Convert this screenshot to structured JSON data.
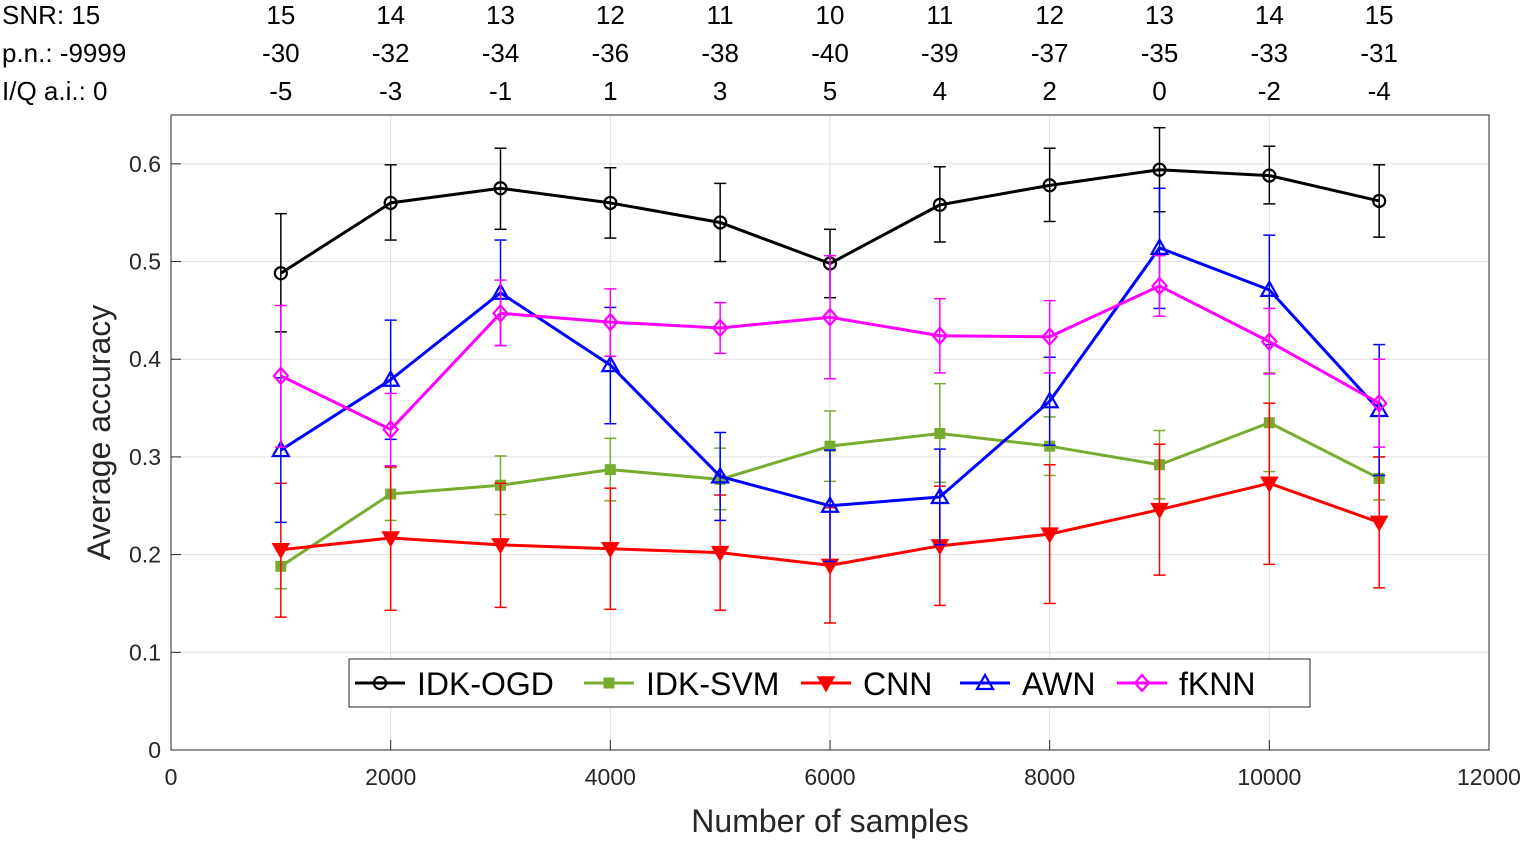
{
  "chart_data": {
    "type": "line",
    "title": "",
    "xlabel": "Number of samples",
    "ylabel": "Average accuracy",
    "xlim": [
      0,
      12000
    ],
    "ylim": [
      0,
      0.65
    ],
    "xticks": [
      0,
      2000,
      4000,
      6000,
      8000,
      10000,
      12000
    ],
    "xtick_labels": [
      "0",
      "2000",
      "4000",
      "6000",
      "8000",
      "10000",
      "12000"
    ],
    "yticks": [
      0,
      0.1,
      0.2,
      0.3,
      0.4,
      0.5,
      0.6
    ],
    "ytick_labels": [
      "0",
      "0.1",
      "0.2",
      "0.3",
      "0.4",
      "0.5",
      "0.6"
    ],
    "grid": true,
    "legend_position": "bottom-center",
    "x": [
      1000,
      2000,
      3000,
      4000,
      5000,
      6000,
      7000,
      8000,
      9000,
      10000,
      11000
    ],
    "top_annotations": [
      {
        "label": "SNR: 15",
        "values": [
          "15",
          "14",
          "13",
          "12",
          "11",
          "10",
          "11",
          "12",
          "13",
          "14",
          "15"
        ]
      },
      {
        "label": "p.n.: -9999",
        "values": [
          "-30",
          "-32",
          "-34",
          "-36",
          "-38",
          "-40",
          "-39",
          "-37",
          "-35",
          "-33",
          "-31"
        ]
      },
      {
        "label": "I/Q a.i.: 0",
        "values": [
          "-5",
          "-3",
          "-1",
          "1",
          "3",
          "5",
          "4",
          "2",
          "0",
          "-2",
          "-4"
        ]
      }
    ],
    "series": [
      {
        "name": "IDK-OGD",
        "color": "#000000",
        "marker": "circle",
        "values": [
          0.488,
          0.56,
          0.575,
          0.56,
          0.54,
          0.498,
          0.558,
          0.578,
          0.594,
          0.588,
          0.562
        ],
        "err_low": [
          0.428,
          0.522,
          0.533,
          0.524,
          0.5,
          0.463,
          0.52,
          0.541,
          0.551,
          0.559,
          0.525
        ],
        "err_high": [
          0.549,
          0.599,
          0.616,
          0.596,
          0.58,
          0.533,
          0.597,
          0.616,
          0.637,
          0.618,
          0.599
        ]
      },
      {
        "name": "IDK-SVM",
        "color": "#77ac30",
        "marker": "square",
        "values": [
          0.188,
          0.262,
          0.271,
          0.287,
          0.277,
          0.311,
          0.324,
          0.311,
          0.292,
          0.335,
          0.278
        ],
        "err_low": [
          0.165,
          0.235,
          0.241,
          0.255,
          0.246,
          0.275,
          0.274,
          0.281,
          0.257,
          0.285,
          0.256
        ],
        "err_high": [
          0.211,
          0.289,
          0.301,
          0.319,
          0.309,
          0.347,
          0.375,
          0.341,
          0.327,
          0.386,
          0.3
        ]
      },
      {
        "name": "CNN",
        "color": "#ff0000",
        "marker": "triangle-down",
        "values": [
          0.205,
          0.217,
          0.21,
          0.206,
          0.202,
          0.189,
          0.209,
          0.221,
          0.246,
          0.273,
          0.233
        ],
        "err_low": [
          0.136,
          0.143,
          0.146,
          0.144,
          0.143,
          0.13,
          0.148,
          0.15,
          0.179,
          0.19,
          0.166
        ],
        "err_high": [
          0.273,
          0.29,
          0.273,
          0.268,
          0.261,
          0.248,
          0.27,
          0.292,
          0.313,
          0.355,
          0.3
        ]
      },
      {
        "name": "AWN",
        "color": "#0000ff",
        "marker": "triangle-up",
        "values": [
          0.307,
          0.379,
          0.468,
          0.394,
          0.28,
          0.25,
          0.259,
          0.357,
          0.514,
          0.471,
          0.348
        ],
        "err_low": [
          0.233,
          0.318,
          0.414,
          0.334,
          0.235,
          0.193,
          0.21,
          0.312,
          0.452,
          0.415,
          0.281
        ],
        "err_high": [
          0.381,
          0.44,
          0.522,
          0.453,
          0.325,
          0.307,
          0.308,
          0.402,
          0.575,
          0.527,
          0.415
        ]
      },
      {
        "name": "fKNN",
        "color": "#ff00ff",
        "marker": "diamond",
        "values": [
          0.383,
          0.328,
          0.447,
          0.438,
          0.432,
          0.443,
          0.424,
          0.423,
          0.475,
          0.418,
          0.355
        ],
        "err_low": [
          0.31,
          0.291,
          0.414,
          0.403,
          0.406,
          0.38,
          0.386,
          0.386,
          0.444,
          0.385,
          0.31
        ],
        "err_high": [
          0.455,
          0.365,
          0.481,
          0.472,
          0.458,
          0.506,
          0.462,
          0.46,
          0.506,
          0.452,
          0.4
        ]
      }
    ]
  }
}
